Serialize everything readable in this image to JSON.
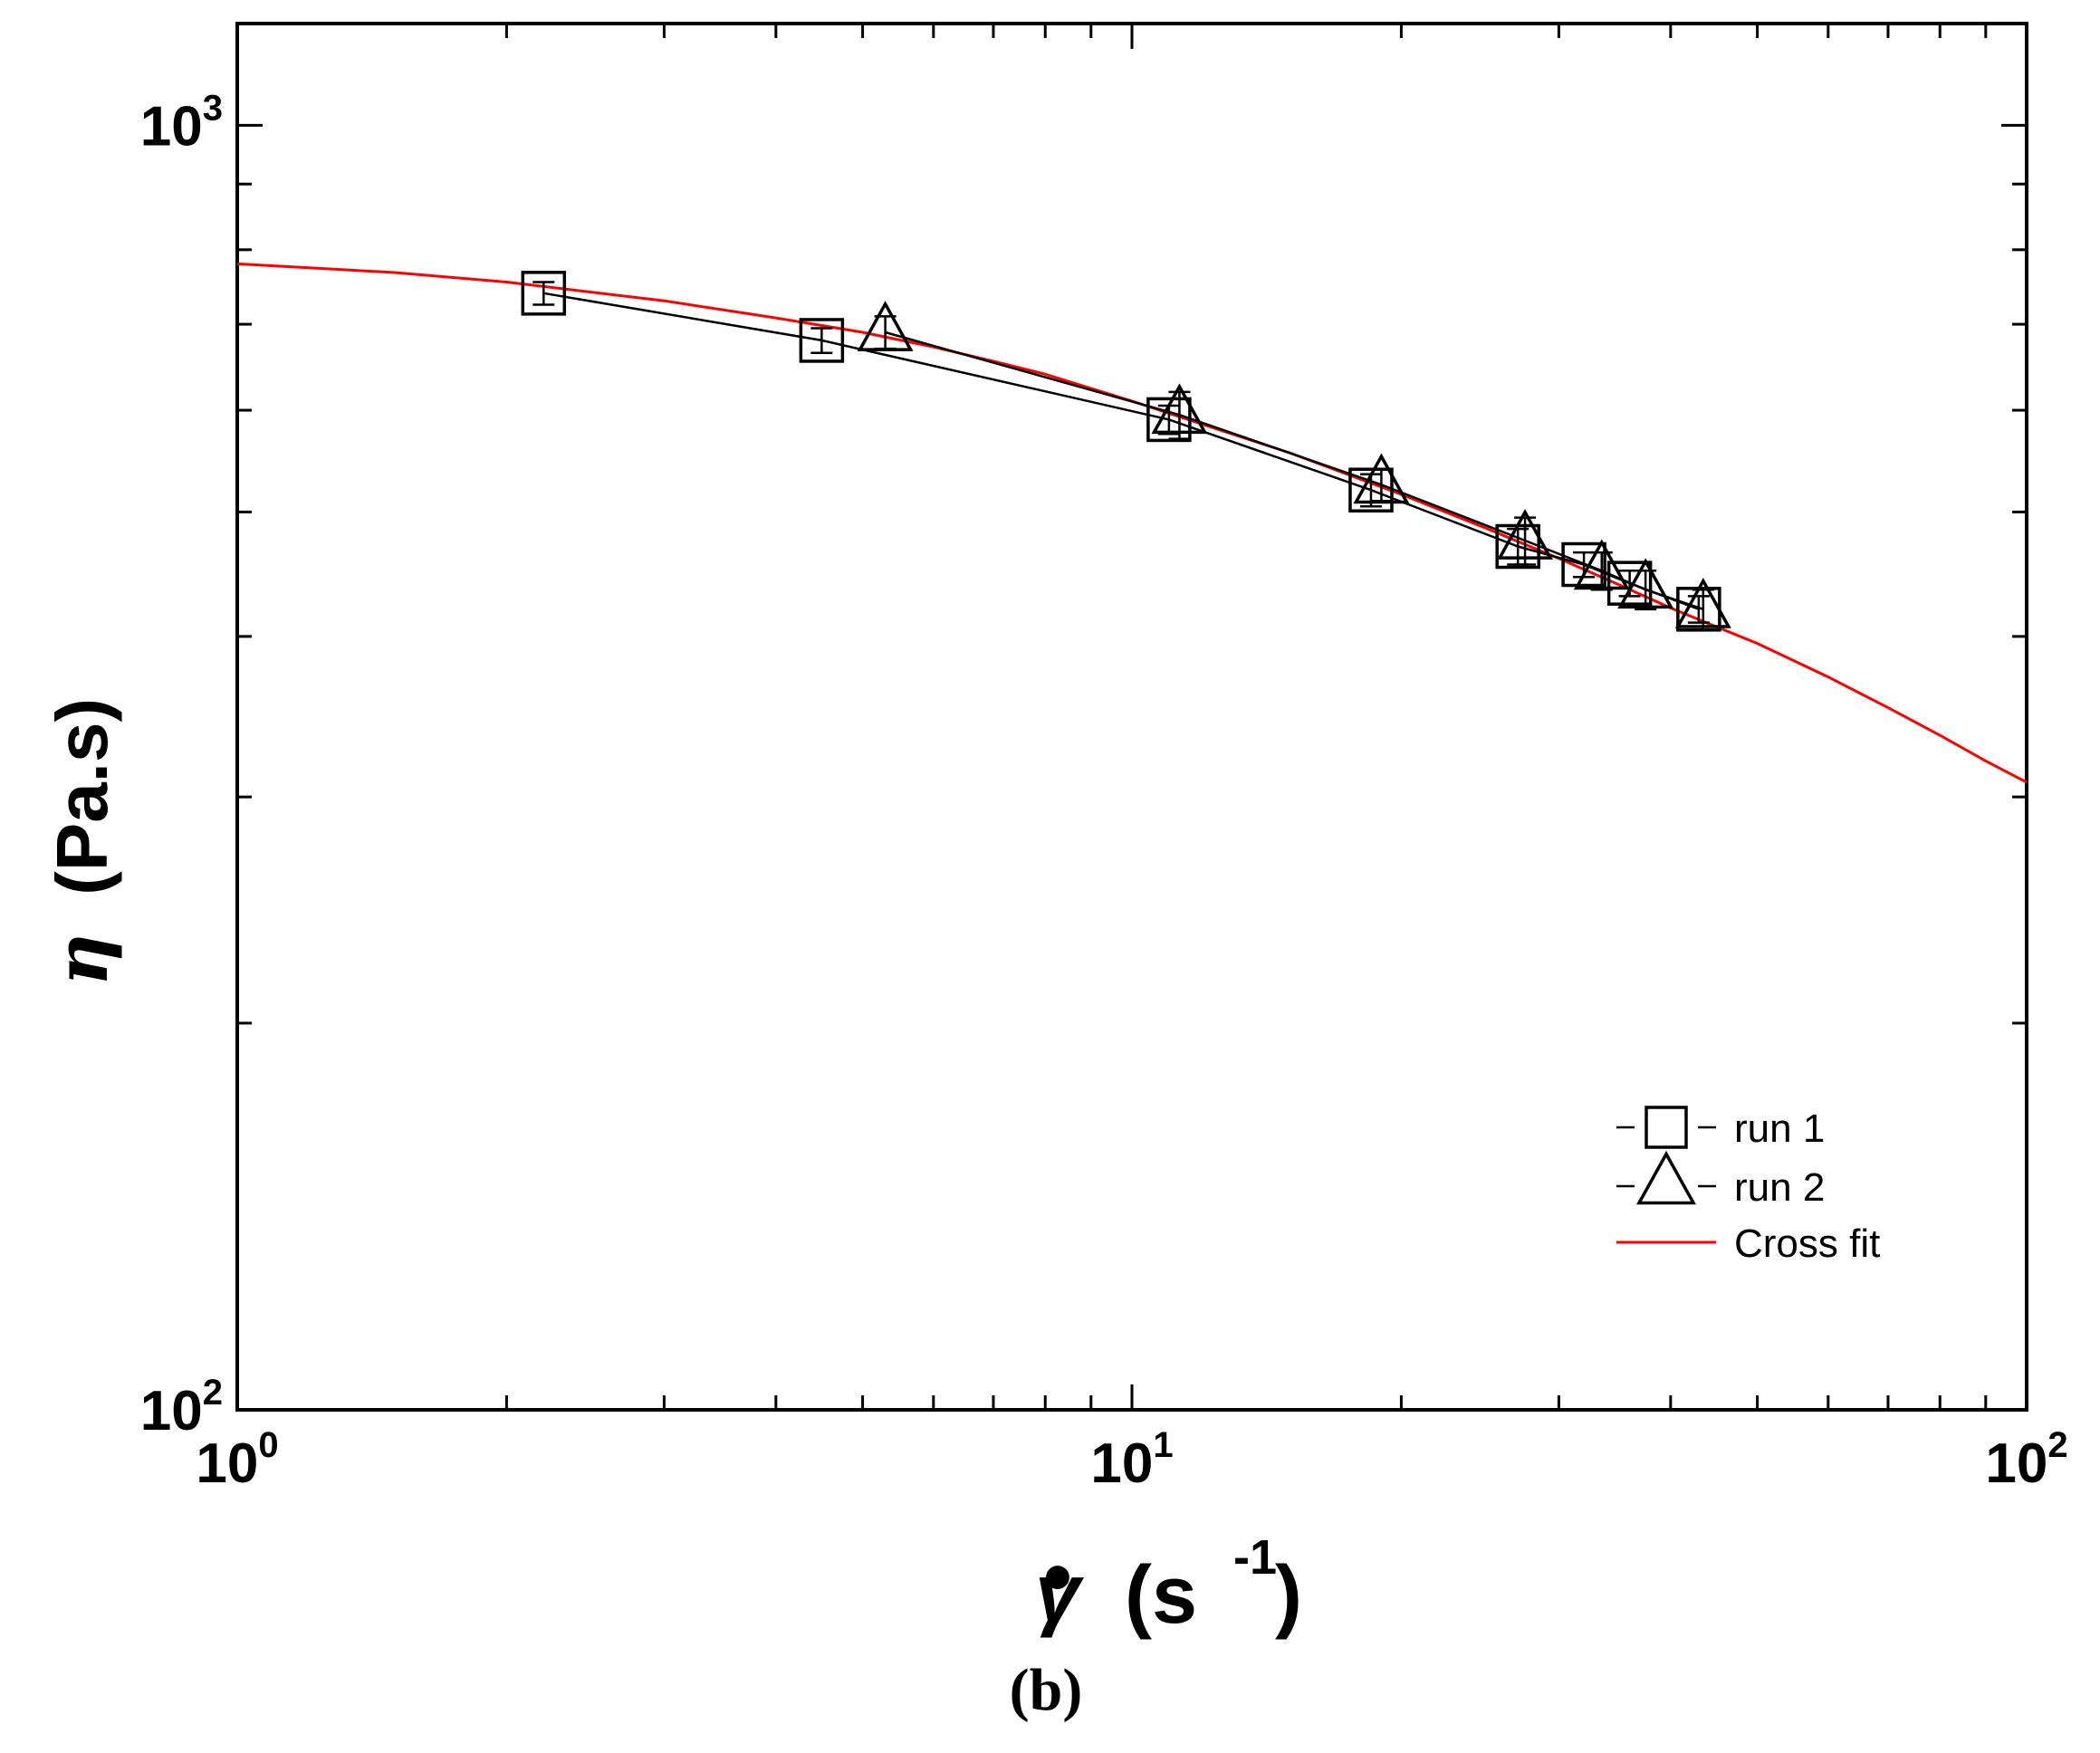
{
  "chart_data": {
    "type": "scatter",
    "x_scale": "log",
    "y_scale": "log",
    "xlim": [
      1,
      100
    ],
    "ylim": [
      100,
      1200
    ],
    "x_ticks": [
      {
        "value": 1,
        "base": "10",
        "exp": "0"
      },
      {
        "value": 10,
        "base": "10",
        "exp": "1"
      },
      {
        "value": 100,
        "base": "10",
        "exp": "2"
      }
    ],
    "y_ticks": [
      {
        "value": 100,
        "base": "10",
        "exp": "2"
      },
      {
        "value": 1000,
        "base": "10",
        "exp": "3"
      }
    ],
    "xlabel": {
      "symbol": "γ",
      "dot": "•",
      "unit_open": "(s",
      "unit_exp": "-1",
      "unit_close": ")"
    },
    "ylabel": {
      "symbol": "η",
      "unit": "(Pa.s)"
    },
    "legend_position": "bottom-right",
    "grid": false,
    "series": [
      {
        "name": "run 1",
        "marker": "square",
        "color": "#000000",
        "x": [
          2.2,
          4.5,
          11.0,
          18.5,
          27.0,
          32.0,
          36.0,
          43.0
        ],
        "y": [
          740,
          680,
          590,
          520,
          470,
          455,
          440,
          420
        ],
        "err": [
          15,
          15,
          15,
          15,
          15,
          10,
          10,
          10
        ]
      },
      {
        "name": "run 2",
        "marker": "triangle",
        "color": "#000000",
        "x": [
          5.3,
          11.3,
          19.0,
          27.5,
          33.5,
          37.5,
          43.5
        ],
        "y": [
          690,
          595,
          525,
          475,
          450,
          435,
          420
        ],
        "err": [
          20,
          25,
          15,
          20,
          15,
          15,
          15
        ]
      },
      {
        "name": "Cross fit",
        "line": true,
        "color": "#ff0000",
        "x": [
          1,
          1.5,
          2,
          3,
          4,
          5,
          6,
          7,
          8,
          10,
          12,
          15,
          20,
          25,
          30,
          35,
          40,
          45,
          50,
          60,
          70,
          80,
          90,
          100
        ],
        "y": [
          780,
          768,
          755,
          730,
          708,
          690,
          672,
          655,
          640,
          610,
          585,
          556,
          516,
          485,
          460,
          439,
          421,
          407,
          395,
          372,
          352,
          335,
          320,
          308
        ]
      }
    ],
    "panel_label": "(b)"
  }
}
